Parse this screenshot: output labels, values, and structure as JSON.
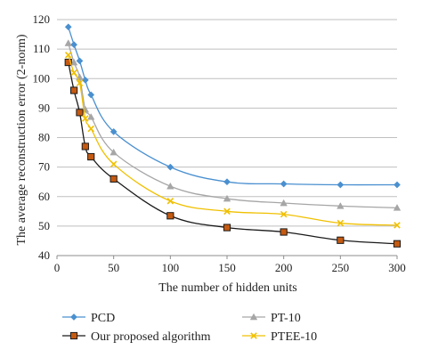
{
  "chart_data": {
    "type": "line",
    "xlabel": "The number of hidden units",
    "ylabel": "The average reconstruction error (2-norm)",
    "xlim": [
      0,
      300
    ],
    "ylim": [
      40,
      120
    ],
    "xticks": [
      "0",
      "50",
      "100",
      "150",
      "200",
      "250",
      "300"
    ],
    "yticks": [
      "40",
      "50",
      "60",
      "70",
      "80",
      "90",
      "100",
      "110",
      "120"
    ],
    "grid": "horizontal",
    "legend": "bottom",
    "series": [
      {
        "name": "PCD",
        "color": "#4a90d0",
        "marker": "diamond",
        "x": [
          10,
          15,
          20,
          25,
          30,
          50,
          100,
          150,
          200,
          250,
          300
        ],
        "y": [
          117.5,
          111.5,
          106,
          99.5,
          94.5,
          82,
          70,
          65,
          64.3,
          64,
          64
        ]
      },
      {
        "name": "PT-10",
        "color": "#a6a6a6",
        "marker": "triangle",
        "x": [
          10,
          15,
          20,
          25,
          30,
          50,
          100,
          150,
          200,
          250,
          300
        ],
        "y": [
          112,
          105.5,
          100.5,
          89.5,
          87,
          75,
          63.5,
          59.3,
          57.8,
          56.8,
          56.2
        ]
      },
      {
        "name": "Our proposed algorithm",
        "color": "#c55a11",
        "marker": "square",
        "x": [
          10,
          15,
          20,
          25,
          30,
          50,
          100,
          150,
          200,
          250,
          300
        ],
        "y": [
          105.5,
          96,
          88.5,
          77,
          73.5,
          66,
          53.5,
          49.5,
          48,
          45.2,
          44
        ]
      },
      {
        "name": "PTEE-10",
        "color": "#f0c000",
        "marker": "x",
        "x": [
          10,
          15,
          20,
          25,
          30,
          50,
          100,
          150,
          200,
          250,
          300
        ],
        "y": [
          108,
          102,
          98.5,
          86.5,
          83,
          71,
          58.5,
          55,
          54,
          51,
          50.3
        ]
      }
    ]
  }
}
